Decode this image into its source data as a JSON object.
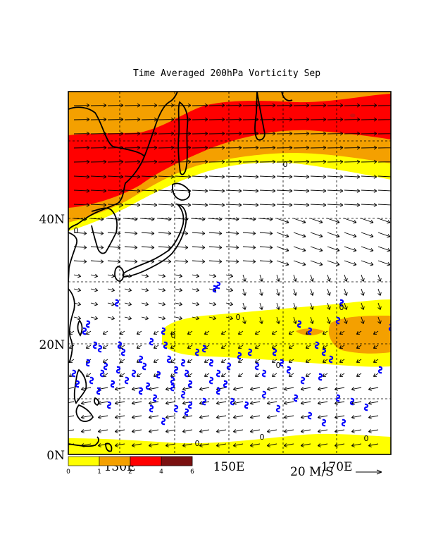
{
  "title": "Time Averaged 200hPa Vorticity Sep",
  "lat_labels": [
    "40N",
    "20N",
    "0N"
  ],
  "lon_labels": [
    "130E",
    "150E",
    "170E"
  ],
  "colorbar": {
    "ticks": [
      "0",
      "1",
      "2",
      "4",
      "6"
    ],
    "colors": [
      "#ffff00",
      "#f4a000",
      "#ff0000",
      "#d01010",
      "#7a1010"
    ]
  },
  "vector_reference": {
    "label": "20 M/S"
  },
  "contour_label": "0",
  "colors": {
    "yellow": "#ffff00",
    "orange": "#f4a000",
    "red": "#ff0000",
    "coast": "#000000",
    "typhoon": "#0000ff",
    "grid": "#000000"
  },
  "map_extent": {
    "lon": [
      114,
      176
    ],
    "lat": [
      0,
      58
    ]
  }
}
